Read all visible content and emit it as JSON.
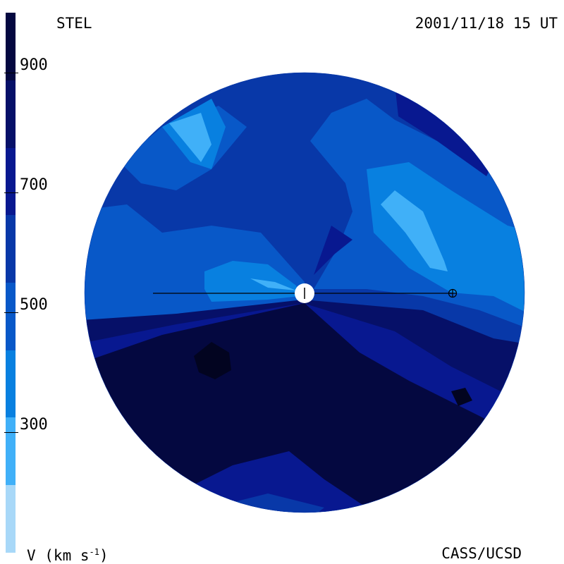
{
  "header": {
    "source": "STEL",
    "datetime": "2001/11/18 15 UT"
  },
  "footer": {
    "credit": "CASS/UCSD",
    "units_prefix": "V (km s",
    "units_exp": "-1",
    "units_suffix": ")"
  },
  "colorbar": {
    "tick_labels": [
      "900",
      "700",
      "500",
      "300"
    ],
    "tick_values": [
      900,
      700,
      500,
      300
    ],
    "range": [
      100,
      1000
    ],
    "colors": [
      "#a8d8f8",
      "#40b0f8",
      "#0880e0",
      "#0858c8",
      "#0838a8",
      "#081890",
      "#061068",
      "#040840"
    ]
  },
  "map": {
    "description_colors": {
      "fast_south": "#040840",
      "medium": "#0838a8",
      "slow_patches": "#40b0f8"
    },
    "markers": [
      "sun-center",
      "earth-symbol"
    ]
  }
}
